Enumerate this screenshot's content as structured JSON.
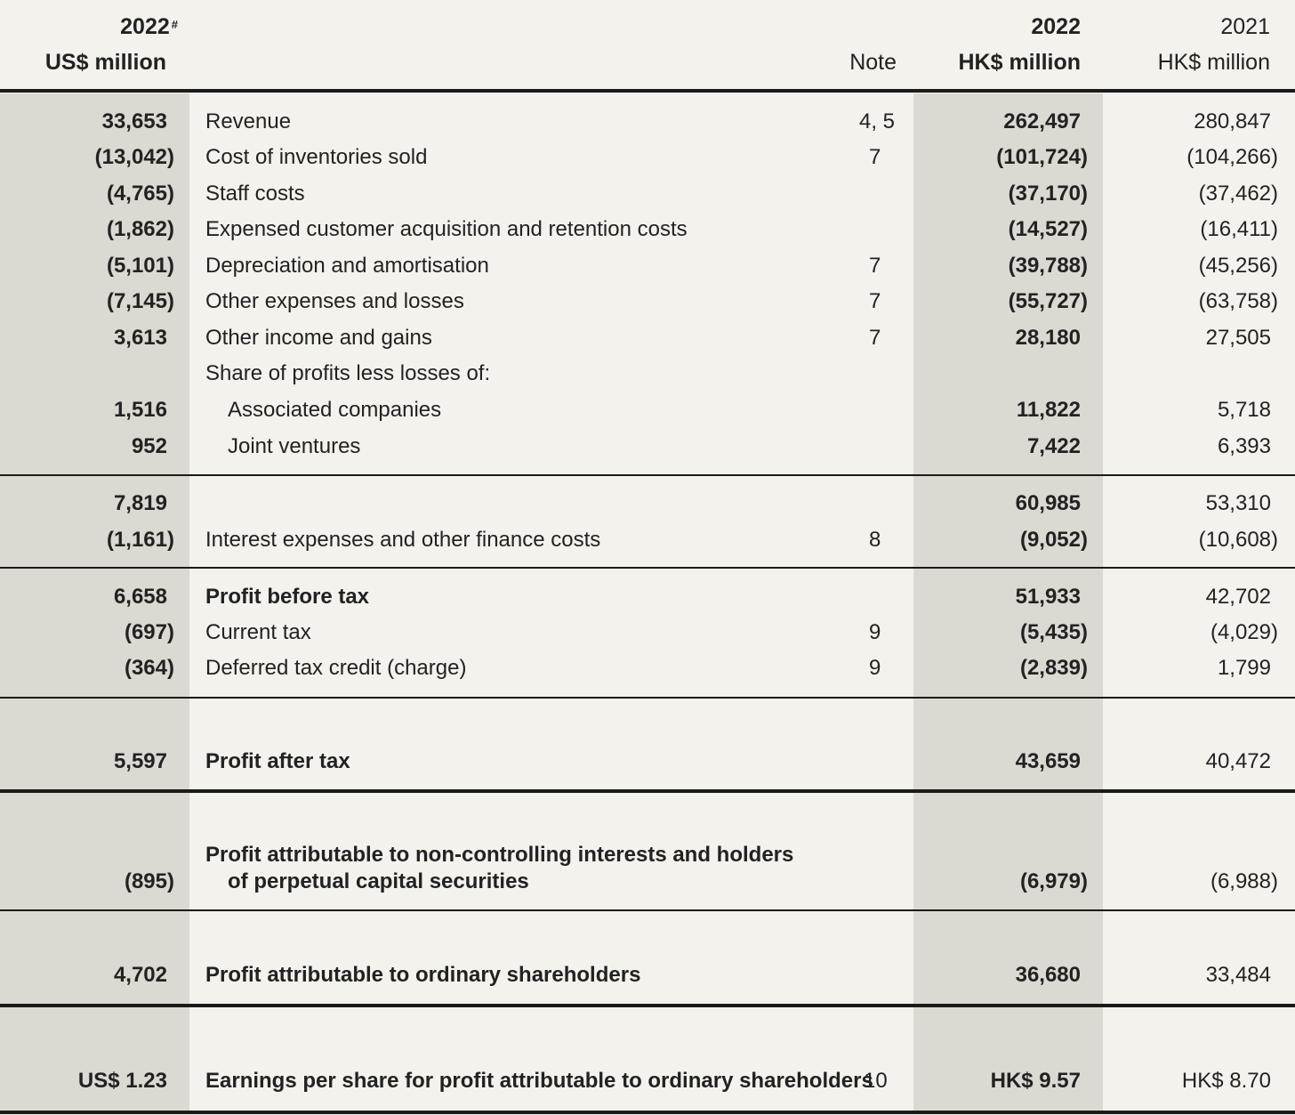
{
  "header": {
    "usd_year": "2022",
    "usd_marker": "#",
    "usd_unit": "US$ million",
    "note": "Note",
    "hk_year": "2022",
    "hk_unit": "HK$ million",
    "prev_year": "2021",
    "prev_unit": "HK$ million"
  },
  "rows": [
    {
      "usd": "33,653",
      "label": "Revenue",
      "note": "4, 5",
      "hk": "262,497",
      "prev": "280,847"
    },
    {
      "usd": "(13,042)",
      "label": "Cost of inventories sold",
      "note": "7",
      "hk": "(101,724)",
      "prev": "(104,266)"
    },
    {
      "usd": "(4,765)",
      "label": "Staff costs",
      "note": "",
      "hk": "(37,170)",
      "prev": "(37,462)"
    },
    {
      "usd": "(1,862)",
      "label": "Expensed customer acquisition and retention costs",
      "note": "",
      "hk": "(14,527)",
      "prev": "(16,411)"
    },
    {
      "usd": "(5,101)",
      "label": "Depreciation and amortisation",
      "note": "7",
      "hk": "(39,788)",
      "prev": "(45,256)"
    },
    {
      "usd": "(7,145)",
      "label": "Other expenses and losses",
      "note": "7",
      "hk": "(55,727)",
      "prev": "(63,758)"
    },
    {
      "usd": "3,613",
      "label": "Other income and gains",
      "note": "7",
      "hk": "28,180",
      "prev": "27,505"
    },
    {
      "usd": "",
      "label": "Share of profits less losses of:",
      "note": "",
      "hk": "",
      "prev": ""
    },
    {
      "usd": "1,516",
      "label": "Associated companies",
      "note": "",
      "hk": "11,822",
      "prev": "5,718"
    },
    {
      "usd": "952",
      "label": "Joint ventures",
      "note": "",
      "hk": "7,422",
      "prev": "6,393"
    },
    {
      "usd": "7,819",
      "label": "",
      "note": "",
      "hk": "60,985",
      "prev": "53,310"
    },
    {
      "usd": "(1,161)",
      "label": "Interest expenses and other finance costs",
      "note": "8",
      "hk": "(9,052)",
      "prev": "(10,608)"
    },
    {
      "usd": "6,658",
      "label": "Profit before tax",
      "note": "",
      "hk": "51,933",
      "prev": "42,702"
    },
    {
      "usd": "(697)",
      "label": "Current tax",
      "note": "9",
      "hk": "(5,435)",
      "prev": "(4,029)"
    },
    {
      "usd": "(364)",
      "label": "Deferred tax credit (charge)",
      "note": "9",
      "hk": "(2,839)",
      "prev": "1,799"
    },
    {
      "usd": "5,597",
      "label": "Profit after tax",
      "note": "",
      "hk": "43,659",
      "prev": "40,472"
    },
    {
      "usd": "(895)",
      "label": "Profit attributable to non-controlling interests and holders",
      "label2": "of perpetual capital securities",
      "note": "",
      "hk": "(6,979)",
      "prev": "(6,988)"
    },
    {
      "usd": "4,702",
      "label": "Profit attributable to ordinary shareholders",
      "note": "",
      "hk": "36,680",
      "prev": "33,484"
    },
    {
      "usd": "US$ 1.23",
      "label": "Earnings per share for profit attributable to ordinary shareholders",
      "note": "10",
      "hk": "HK$ 9.57",
      "prev": "HK$ 8.70"
    }
  ]
}
